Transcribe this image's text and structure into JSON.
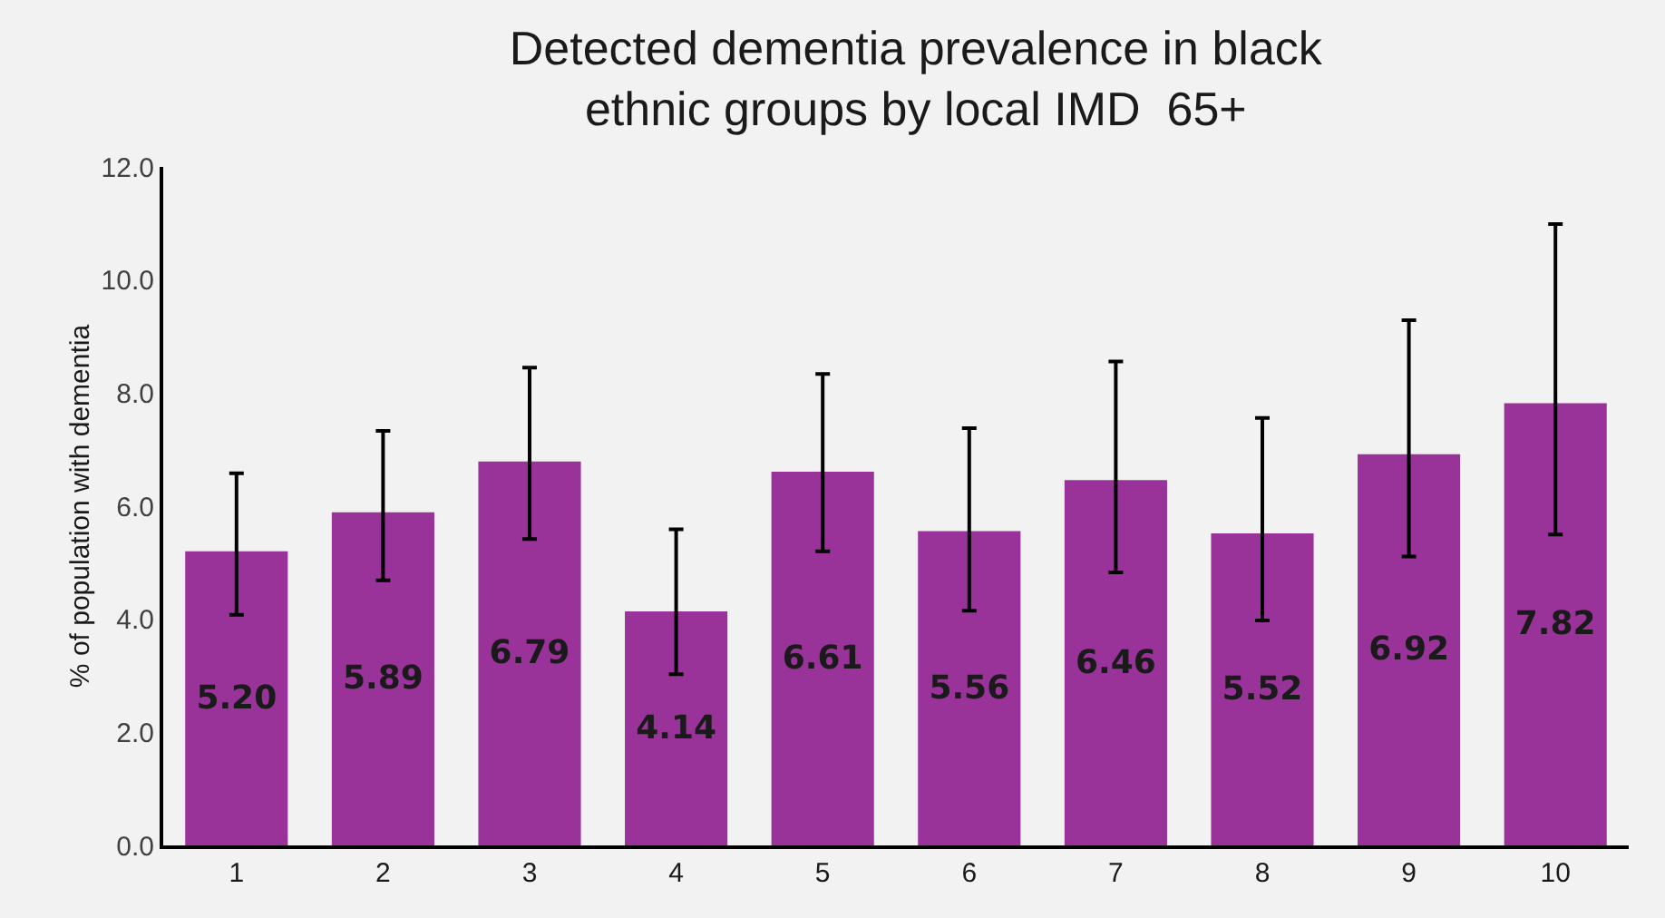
{
  "chart_data": {
    "type": "bar",
    "title": "Detected dementia prevalence in black ethnic groups by local IMD  65+",
    "ylabel": "% of population with dementia",
    "categories": [
      "1",
      "2",
      "3",
      "4",
      "5",
      "6",
      "7",
      "8",
      "9",
      "10"
    ],
    "values": [
      5.2,
      5.89,
      6.79,
      4.14,
      6.61,
      5.56,
      6.46,
      5.52,
      6.92,
      7.82
    ],
    "errors": [
      [
        4.08,
        6.58
      ],
      [
        4.69,
        7.33
      ],
      [
        5.42,
        8.45
      ],
      [
        3.03,
        5.59
      ],
      [
        5.2,
        8.34
      ],
      [
        4.15,
        7.38
      ],
      [
        4.83,
        8.56
      ],
      [
        3.98,
        7.56
      ],
      [
        5.11,
        9.29
      ],
      [
        5.5,
        10.99
      ]
    ],
    "value_labels": [
      "5.20",
      "5.89",
      "6.79",
      "4.14",
      "6.61",
      "5.56",
      "6.46",
      "5.52",
      "6.92",
      "7.82"
    ],
    "color": "#993399",
    "grid": false,
    "legend": false,
    "ylim": [
      0,
      12
    ],
    "yticks": [
      {
        "value": 0,
        "label": "0.0"
      },
      {
        "value": 2,
        "label": "2.0"
      },
      {
        "value": 4,
        "label": "4.0"
      },
      {
        "value": 6,
        "label": "6.0"
      },
      {
        "value": 8,
        "label": "8.0"
      },
      {
        "value": 10,
        "label": "10.0"
      },
      {
        "value": 12,
        "label": "12.0"
      }
    ]
  }
}
